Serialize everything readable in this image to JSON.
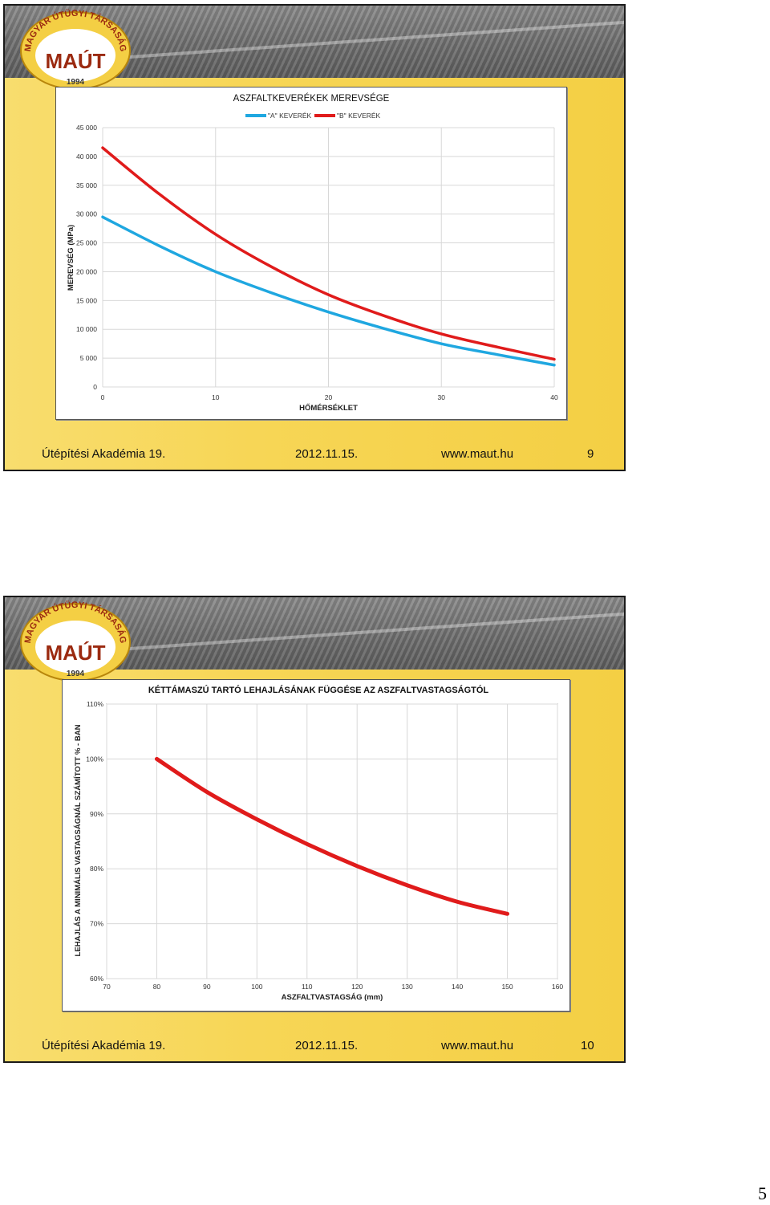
{
  "logo": {
    "org_name": "MAGYAR ÚTÜGYI TÁRSASÁG",
    "abbr": "MAÚT",
    "year": "1994"
  },
  "slides": [
    {
      "footer": {
        "event": "Útépítési Akadémia 19.",
        "date": "2012.11.15.",
        "url": "www.maut.hu",
        "slide_number": "9"
      }
    },
    {
      "footer": {
        "event": "Útépítési Akadémia 19.",
        "date": "2012.11.15.",
        "url": "www.maut.hu",
        "slide_number": "10"
      }
    }
  ],
  "page_number": "5",
  "chart_data": [
    {
      "type": "line",
      "title": "ASZFALTKEVERÉKEK MEREVSÉGE",
      "xlabel": "HŐMÉRSÉKLET",
      "ylabel": "MEREVSÉG (MPa)",
      "xlim": [
        0,
        40
      ],
      "ylim": [
        0,
        45000
      ],
      "x_ticks": [
        "0",
        "10",
        "20",
        "30",
        "40"
      ],
      "y_ticks": [
        "0",
        "5 000",
        "10 000",
        "15 000",
        "20 000",
        "25 000",
        "30 000",
        "35 000",
        "40 000",
        "45 000"
      ],
      "grid": true,
      "legend_position": "top",
      "series": [
        {
          "name": "\"A\" KEVERÉK",
          "color": "#1fa7e0",
          "x": [
            0,
            5,
            10,
            15,
            20,
            25,
            30,
            35,
            40
          ],
          "y": [
            29500,
            24500,
            20000,
            16300,
            13000,
            10100,
            7500,
            5600,
            3800
          ]
        },
        {
          "name": "\"B\" KEVERÉK",
          "color": "#e01b1b",
          "x": [
            0,
            5,
            10,
            15,
            20,
            25,
            30,
            35,
            40
          ],
          "y": [
            41500,
            33500,
            26500,
            20800,
            16000,
            12300,
            9200,
            6900,
            4800
          ]
        }
      ]
    },
    {
      "type": "line",
      "title": "KÉTTÁMASZÚ TARTÓ LEHAJLÁSÁNAK FÜGGÉSE AZ ASZFALTVASTAGSÁGTÓL",
      "xlabel": "ASZFALTVASTAGSÁG (mm)",
      "ylabel": "LEHAJLÁS A MINIMÁLIS VASTAGSÁGNÁL SZÁMÍTOTT % - BAN",
      "xlim": [
        70,
        160
      ],
      "ylim": [
        0.6,
        1.1
      ],
      "x_ticks": [
        "70",
        "80",
        "90",
        "100",
        "110",
        "120",
        "130",
        "140",
        "150",
        "160"
      ],
      "y_ticks": [
        "60%",
        "70%",
        "80%",
        "90%",
        "100%",
        "110%"
      ],
      "grid": true,
      "series": [
        {
          "color": "#e01b1b",
          "x": [
            80,
            90,
            100,
            110,
            120,
            130,
            140,
            150
          ],
          "y": [
            1.0,
            0.94,
            0.89,
            0.845,
            0.805,
            0.77,
            0.74,
            0.718
          ]
        }
      ]
    }
  ]
}
